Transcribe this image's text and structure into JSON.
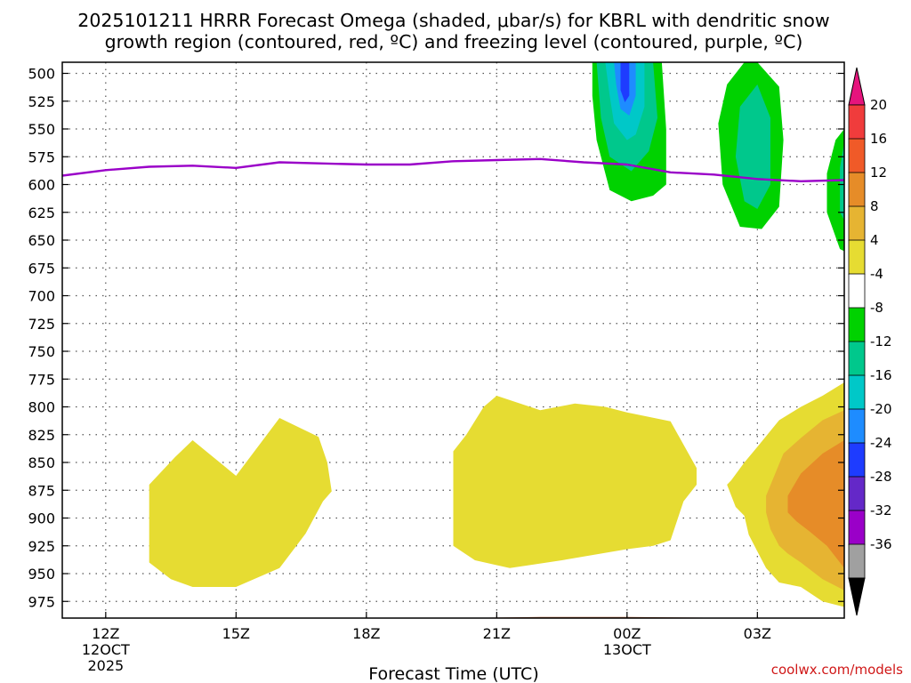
{
  "chart_data": {
    "type": "area",
    "title": "2025101211 HRRR Forecast Omega (shaded, μbar/s) for KBRL with dendritic snow growth region (contoured, red, ºC) and freezing level (contoured, purple, ºC)",
    "xlabel": "Forecast Time (UTC)",
    "ylabel": "",
    "credit": "coolwx.com/models",
    "xlim": [
      -1,
      17
    ],
    "ylim": [
      490,
      990
    ],
    "y_ticks": [
      500,
      525,
      550,
      575,
      600,
      625,
      650,
      675,
      700,
      725,
      750,
      775,
      800,
      825,
      850,
      875,
      900,
      925,
      950,
      975
    ],
    "x_ticks": [
      {
        "x": 0,
        "lines": [
          "12Z",
          "12OCT",
          "2025"
        ]
      },
      {
        "x": 3,
        "lines": [
          "15Z"
        ]
      },
      {
        "x": 6,
        "lines": [
          "18Z"
        ]
      },
      {
        "x": 9,
        "lines": [
          "21Z"
        ]
      },
      {
        "x": 12,
        "lines": [
          "00Z",
          "13OCT"
        ]
      },
      {
        "x": 15,
        "lines": [
          "03Z"
        ]
      }
    ],
    "grid": true,
    "freezing_level": {
      "name": "Freezing level",
      "color": "#9a00c8",
      "x": [
        -1,
        0,
        1,
        2,
        3,
        4,
        5,
        6,
        7,
        8,
        9,
        10,
        11,
        12,
        13,
        14,
        15,
        16,
        17
      ],
      "y": [
        592,
        587,
        584,
        583,
        585,
        580,
        581,
        582,
        582,
        579,
        578,
        577,
        580,
        582,
        589,
        591,
        595,
        597,
        596
      ]
    },
    "terrain": {
      "color": "#a0522d",
      "x": [
        -1,
        3,
        6,
        8,
        10,
        12,
        15,
        17
      ],
      "y": [
        993,
        992,
        991,
        990,
        989,
        989,
        990,
        991
      ]
    },
    "omega_regions": [
      {
        "name": "up-1",
        "level": -4,
        "color": "#00d200",
        "points": [
          [
            11.2,
            490
          ],
          [
            12.8,
            490
          ],
          [
            12.9,
            550
          ],
          [
            12.9,
            600
          ],
          [
            12.6,
            610
          ],
          [
            12.1,
            615
          ],
          [
            11.6,
            605
          ],
          [
            11.3,
            560
          ],
          [
            11.2,
            520
          ]
        ]
      },
      {
        "name": "up-1",
        "level": -8,
        "color": "#00c88c",
        "points": [
          [
            11.3,
            490
          ],
          [
            12.6,
            490
          ],
          [
            12.7,
            540
          ],
          [
            12.5,
            570
          ],
          [
            12.1,
            588
          ],
          [
            11.6,
            575
          ],
          [
            11.4,
            540
          ]
        ]
      },
      {
        "name": "up-1",
        "level": -12,
        "color": "#00c8c8",
        "points": [
          [
            11.5,
            490
          ],
          [
            12.4,
            490
          ],
          [
            12.4,
            530
          ],
          [
            12.2,
            555
          ],
          [
            12.0,
            560
          ],
          [
            11.7,
            545
          ],
          [
            11.6,
            520
          ]
        ]
      },
      {
        "name": "up-1",
        "level": -16,
        "color": "#1e8cff",
        "points": [
          [
            11.7,
            490
          ],
          [
            12.2,
            490
          ],
          [
            12.2,
            520
          ],
          [
            12.05,
            538
          ],
          [
            11.85,
            532
          ],
          [
            11.75,
            510
          ]
        ]
      },
      {
        "name": "up-1",
        "level": -20,
        "color": "#1e3cff",
        "points": [
          [
            11.85,
            490
          ],
          [
            12.05,
            490
          ],
          [
            12.05,
            520
          ],
          [
            11.95,
            526
          ],
          [
            11.85,
            515
          ]
        ]
      },
      {
        "name": "up-2",
        "level": -4,
        "color": "#00d200",
        "points": [
          [
            15.0,
            490
          ],
          [
            15.5,
            512
          ],
          [
            15.6,
            560
          ],
          [
            15.5,
            620
          ],
          [
            15.1,
            640
          ],
          [
            14.6,
            638
          ],
          [
            14.2,
            600
          ],
          [
            14.1,
            545
          ],
          [
            14.3,
            510
          ],
          [
            14.7,
            490
          ]
        ]
      },
      {
        "name": "up-2",
        "level": -8,
        "color": "#00c88c",
        "points": [
          [
            15.0,
            510
          ],
          [
            15.3,
            540
          ],
          [
            15.3,
            600
          ],
          [
            15.0,
            622
          ],
          [
            14.7,
            615
          ],
          [
            14.5,
            575
          ],
          [
            14.6,
            530
          ]
        ]
      },
      {
        "name": "up-3",
        "level": -4,
        "color": "#00d200",
        "points": [
          [
            17.0,
            550
          ],
          [
            16.8,
            560
          ],
          [
            16.6,
            590
          ],
          [
            16.6,
            625
          ],
          [
            16.9,
            658
          ],
          [
            17.0,
            660
          ]
        ]
      },
      {
        "name": "up-3",
        "level": -8,
        "color": "#00c88c",
        "points": [
          [
            17.0,
            562
          ],
          [
            16.9,
            585
          ],
          [
            16.9,
            625
          ],
          [
            17.0,
            632
          ]
        ]
      }
    ],
    "omega_down_regions": [
      {
        "name": "down-1",
        "level": 4,
        "color": "#e6dc32",
        "points": [
          [
            1.0,
            870
          ],
          [
            1.6,
            845
          ],
          [
            2.0,
            830
          ],
          [
            3.0,
            862
          ],
          [
            4.0,
            810
          ],
          [
            4.9,
            827
          ],
          [
            5.1,
            850
          ],
          [
            5.2,
            876
          ],
          [
            5.0,
            885
          ],
          [
            4.6,
            914
          ],
          [
            4.0,
            945
          ],
          [
            3.0,
            962
          ],
          [
            2.0,
            962
          ],
          [
            1.5,
            955
          ],
          [
            1.0,
            940
          ],
          [
            1.0,
            900
          ]
        ]
      },
      {
        "name": "down-2",
        "level": 4,
        "color": "#e6dc32",
        "points": [
          [
            8.0,
            840
          ],
          [
            8.3,
            825
          ],
          [
            8.7,
            800
          ],
          [
            9.0,
            790
          ],
          [
            10.0,
            803
          ],
          [
            10.8,
            797
          ],
          [
            11.5,
            800
          ],
          [
            12.0,
            805
          ],
          [
            13.0,
            813
          ],
          [
            13.6,
            855
          ],
          [
            13.6,
            870
          ],
          [
            13.3,
            885
          ],
          [
            13.0,
            920
          ],
          [
            12.6,
            925
          ],
          [
            12.0,
            928
          ],
          [
            10.5,
            938
          ],
          [
            9.3,
            945
          ],
          [
            8.5,
            938
          ],
          [
            8.0,
            925
          ],
          [
            8.0,
            880
          ]
        ]
      },
      {
        "name": "down-3",
        "level": 4,
        "color": "#e6dc32",
        "points": [
          [
            14.4,
            866
          ],
          [
            14.7,
            850
          ],
          [
            15.0,
            836
          ],
          [
            15.5,
            812
          ],
          [
            16.0,
            800
          ],
          [
            16.5,
            790
          ],
          [
            17.0,
            778
          ],
          [
            17.0,
            980
          ],
          [
            16.5,
            975
          ],
          [
            16.0,
            962
          ],
          [
            15.5,
            958
          ],
          [
            15.2,
            945
          ],
          [
            15.0,
            930
          ],
          [
            14.8,
            915
          ],
          [
            14.7,
            898
          ],
          [
            14.5,
            890
          ],
          [
            14.3,
            870
          ]
        ]
      },
      {
        "name": "down-3",
        "level": 8,
        "color": "#e6b432",
        "points": [
          [
            15.2,
            880
          ],
          [
            15.6,
            842
          ],
          [
            16.0,
            828
          ],
          [
            16.5,
            812
          ],
          [
            17.0,
            803
          ],
          [
            17.0,
            965
          ],
          [
            16.5,
            955
          ],
          [
            16.0,
            940
          ],
          [
            15.7,
            932
          ],
          [
            15.5,
            925
          ],
          [
            15.3,
            910
          ],
          [
            15.2,
            895
          ]
        ]
      },
      {
        "name": "down-3",
        "level": 12,
        "color": "#e68c28",
        "points": [
          [
            15.7,
            880
          ],
          [
            16.0,
            860
          ],
          [
            16.5,
            842
          ],
          [
            17.0,
            830
          ],
          [
            17.0,
            945
          ],
          [
            16.6,
            925
          ],
          [
            16.2,
            912
          ],
          [
            15.9,
            903
          ],
          [
            15.7,
            895
          ]
        ]
      }
    ],
    "colorbar": {
      "min_label": "-36",
      "max_label": "20",
      "boundaries": [
        "20",
        "16",
        "12",
        "8",
        "4",
        "-4",
        "-8",
        "-12",
        "-16",
        "-20",
        "-24",
        "-28",
        "-32",
        "-36"
      ],
      "colors": [
        "#f03c3c",
        "#f05a28",
        "#e68c28",
        "#e6b432",
        "#e6dc32",
        "#ffffff",
        "#00d200",
        "#00c88c",
        "#00c8c8",
        "#1e8cff",
        "#1e3cff",
        "#6428c8",
        "#9a00c8",
        "#a0a0a0"
      ],
      "top_color": "#e6147d",
      "bottom_color": "#000000"
    }
  }
}
